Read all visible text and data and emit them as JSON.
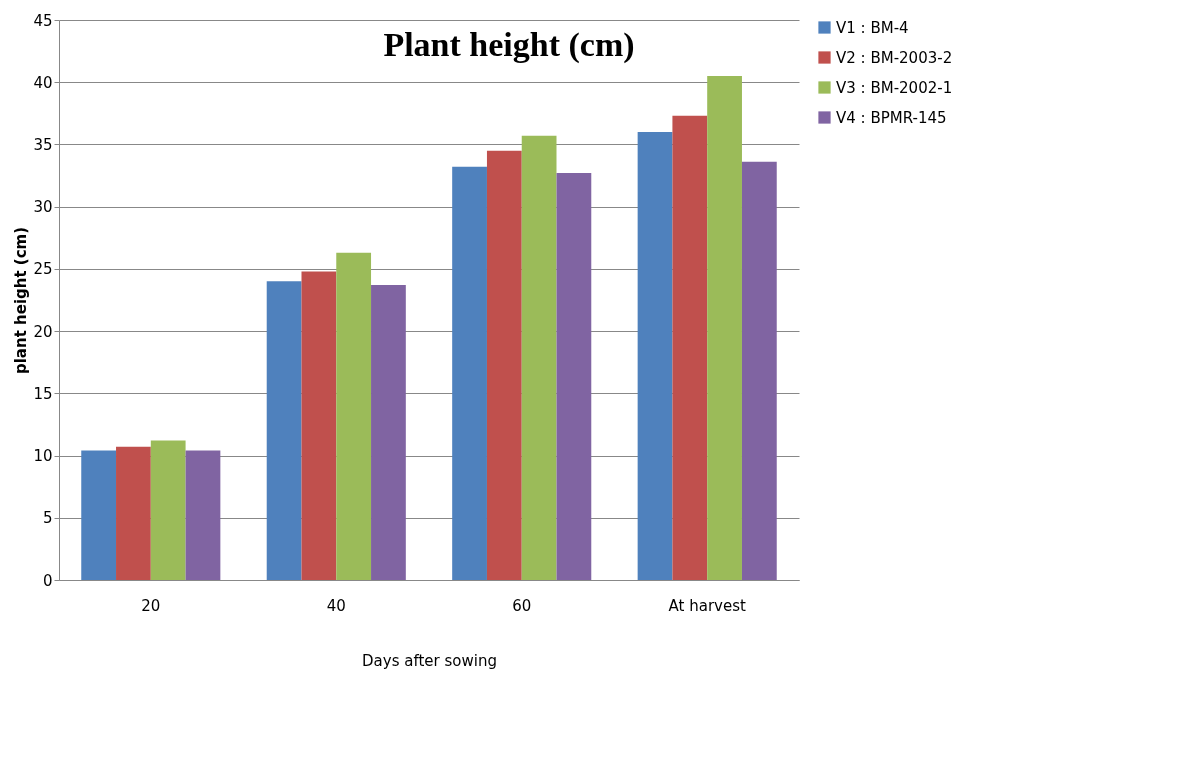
{
  "chart_data": {
    "type": "bar",
    "title": "Plant height (cm)",
    "xlabel": "Days after sowing",
    "ylabel": "plant height (cm)",
    "categories": [
      "20",
      "40",
      "60",
      "At harvest"
    ],
    "series": [
      {
        "name": "V1 : BM-4",
        "color": "#4f81bd",
        "values": [
          10.4,
          24,
          33.2,
          36
        ]
      },
      {
        "name": "V2 : BM-2003-2",
        "color": "#c0504d",
        "values": [
          10.7,
          24.8,
          34.5,
          37.3
        ]
      },
      {
        "name": "V3 : BM-2002-1",
        "color": "#9bbb59",
        "values": [
          11.2,
          26.3,
          35.7,
          40.5
        ]
      },
      {
        "name": "V4 : BPMR-145",
        "color": "#8064a2",
        "values": [
          10.4,
          23.7,
          32.7,
          33.6
        ]
      }
    ],
    "ylim": [
      0,
      45
    ],
    "yticks": [
      0,
      5,
      10,
      15,
      20,
      25,
      30,
      35,
      40,
      45
    ],
    "grid": "y",
    "legend": "right"
  }
}
